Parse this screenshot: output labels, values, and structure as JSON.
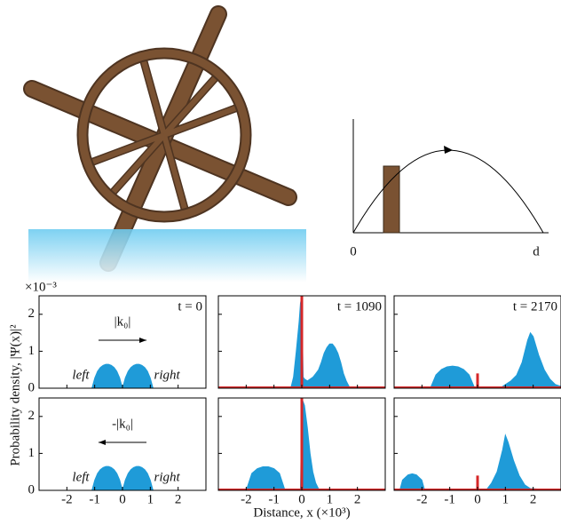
{
  "figure": {
    "ylabel": "Probability density, |Ψ(x)|²",
    "xlabel": "Distance, x (×10³)",
    "y_exponent": "×10⁻³"
  },
  "diagram": {
    "origin_label": "0",
    "end_label": "d"
  },
  "chart_data": [
    {
      "type": "area",
      "title": "t = 0",
      "color": "#1f9bd8",
      "momentum_label": "|k₀|",
      "direction": "right",
      "side_labels": [
        "left",
        "right"
      ],
      "xlim": [
        -3,
        3
      ],
      "xticks": [
        -2,
        -1,
        0,
        1,
        2
      ],
      "ylim": [
        0,
        2.5
      ],
      "yticks": [
        0,
        1,
        2
      ],
      "x": [
        -3,
        -1.1,
        -1.0,
        -0.9,
        -0.8,
        -0.7,
        -0.6,
        -0.5,
        -0.4,
        -0.3,
        -0.2,
        -0.1,
        0,
        0.1,
        0.2,
        0.3,
        0.4,
        0.5,
        0.6,
        0.7,
        0.8,
        0.9,
        1.0,
        1.1,
        3
      ],
      "values": [
        0,
        0,
        0.28,
        0.46,
        0.56,
        0.62,
        0.65,
        0.65,
        0.62,
        0.56,
        0.46,
        0.28,
        0,
        0.28,
        0.46,
        0.56,
        0.62,
        0.65,
        0.65,
        0.62,
        0.56,
        0.46,
        0.28,
        0,
        0
      ]
    },
    {
      "type": "area",
      "title": "t = 1090",
      "color": "#1f9bd8",
      "barrier": {
        "x": 0,
        "height": 2.5,
        "color": "#d62728"
      },
      "xlim": [
        -3,
        3
      ],
      "xticks": [
        -2,
        -1,
        0,
        1,
        2
      ],
      "ylim": [
        0,
        2.5
      ],
      "yticks": [
        0,
        1,
        2
      ],
      "x": [
        -3,
        -0.4,
        -0.3,
        -0.2,
        -0.1,
        -0.05,
        0,
        0.05,
        0.1,
        0.2,
        0.3,
        0.4,
        0.5,
        0.6,
        0.7,
        0.8,
        0.9,
        1.0,
        1.1,
        1.2,
        1.3,
        1.4,
        1.5,
        1.6,
        1.7,
        1.8,
        3
      ],
      "values": [
        0,
        0,
        0.3,
        1.0,
        1.8,
        2.3,
        2.5,
        0.3,
        0.25,
        0.2,
        0.25,
        0.3,
        0.4,
        0.5,
        0.7,
        0.95,
        1.1,
        1.2,
        1.2,
        1.1,
        0.95,
        0.7,
        0.4,
        0.2,
        0.05,
        0,
        0
      ]
    },
    {
      "type": "area",
      "title": "t = 2170",
      "color": "#1f9bd8",
      "barrier": {
        "x": 0,
        "height": 0.4,
        "color": "#d62728"
      },
      "xlim": [
        -3,
        3
      ],
      "xticks": [
        -2,
        -1,
        0,
        1,
        2
      ],
      "ylim": [
        0,
        2.5
      ],
      "yticks": [
        0,
        1,
        2
      ],
      "x": [
        -3,
        -1.7,
        -1.5,
        -1.3,
        -1.1,
        -0.9,
        -0.7,
        -0.5,
        -0.3,
        -0.1,
        0.8,
        1.0,
        1.2,
        1.4,
        1.6,
        1.8,
        1.9,
        2.0,
        2.2,
        2.4,
        2.6,
        2.8,
        3
      ],
      "values": [
        0,
        0,
        0.36,
        0.51,
        0.58,
        0.6,
        0.58,
        0.51,
        0.36,
        0,
        0,
        0.1,
        0.2,
        0.35,
        0.7,
        1.3,
        1.5,
        1.4,
        0.9,
        0.5,
        0.25,
        0.1,
        0.05
      ]
    },
    {
      "type": "area",
      "color": "#1f9bd8",
      "momentum_label": "-|k₀|",
      "direction": "left",
      "side_labels": [
        "left",
        "right"
      ],
      "xlim": [
        -3,
        3
      ],
      "xticks": [
        -2,
        -1,
        0,
        1,
        2
      ],
      "ylim": [
        0,
        2.5
      ],
      "yticks": [
        0,
        1,
        2
      ],
      "x": [
        -3,
        -1.1,
        -1.0,
        -0.9,
        -0.8,
        -0.7,
        -0.6,
        -0.5,
        -0.4,
        -0.3,
        -0.2,
        -0.1,
        0,
        0.1,
        0.2,
        0.3,
        0.4,
        0.5,
        0.6,
        0.7,
        0.8,
        0.9,
        1.0,
        1.1,
        3
      ],
      "values": [
        0,
        0,
        0.28,
        0.46,
        0.56,
        0.62,
        0.65,
        0.65,
        0.62,
        0.56,
        0.46,
        0.28,
        0,
        0.28,
        0.46,
        0.56,
        0.62,
        0.65,
        0.65,
        0.62,
        0.56,
        0.46,
        0.28,
        0,
        0
      ]
    },
    {
      "type": "area",
      "color": "#1f9bd8",
      "barrier": {
        "x": 0,
        "height": 2.5,
        "color": "#d62728"
      },
      "xlim": [
        -3,
        3
      ],
      "xticks": [
        -2,
        -1,
        0,
        1,
        2
      ],
      "ylim": [
        0,
        2.5
      ],
      "yticks": [
        0,
        1,
        2
      ],
      "x": [
        -3,
        -2.0,
        -1.8,
        -1.6,
        -1.4,
        -1.2,
        -1.0,
        -0.8,
        -0.6,
        -0.05,
        0,
        0.1,
        0.2,
        0.3,
        0.4,
        0.5,
        0.6,
        0.7,
        3
      ],
      "values": [
        0,
        0,
        0.46,
        0.59,
        0.64,
        0.64,
        0.59,
        0.46,
        0,
        0,
        2.5,
        2.3,
        1.7,
        1.0,
        0.5,
        0.2,
        0.05,
        0,
        0
      ]
    },
    {
      "type": "area",
      "color": "#1f9bd8",
      "barrier": {
        "x": 0,
        "height": 0.4,
        "color": "#d62728"
      },
      "xlim": [
        -3,
        3
      ],
      "xticks": [
        -2,
        -1,
        0,
        1,
        2
      ],
      "ylim": [
        0,
        2.5
      ],
      "yticks": [
        0,
        1,
        2
      ],
      "x": [
        -3,
        -2.8,
        -2.7,
        -2.5,
        -2.35,
        -2.2,
        -2.0,
        -1.9,
        0.3,
        0.5,
        0.7,
        0.9,
        1.0,
        1.1,
        1.3,
        1.5,
        1.7,
        1.9,
        3
      ],
      "values": [
        0,
        0,
        0.28,
        0.42,
        0.45,
        0.42,
        0.28,
        0,
        0,
        0.2,
        0.5,
        1.1,
        1.5,
        1.3,
        0.8,
        0.4,
        0.15,
        0.05,
        0
      ]
    }
  ]
}
